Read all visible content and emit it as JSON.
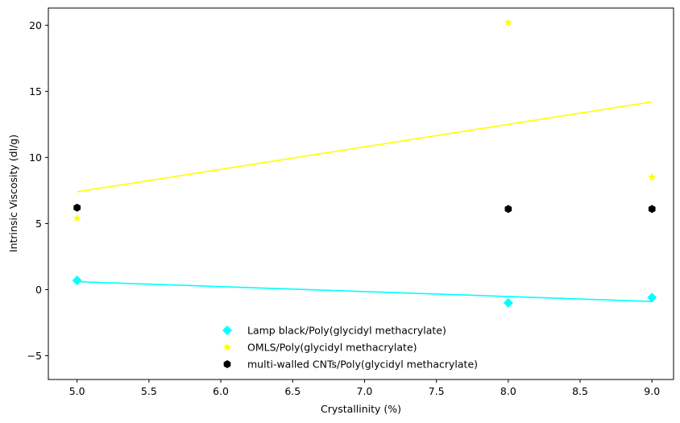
{
  "chart_data": {
    "type": "scatter",
    "xlabel": "Crystallinity (%)",
    "ylabel": "Intrinsic Viscosity (dl/g)",
    "xlim": [
      4.8,
      9.15
    ],
    "ylim": [
      -6.8,
      21.3
    ],
    "x_ticks": [
      5.0,
      5.5,
      6.0,
      6.5,
      7.0,
      7.5,
      8.0,
      8.5,
      9.0
    ],
    "x_tick_labels": [
      "5.0",
      "5.5",
      "6.0",
      "6.5",
      "7.0",
      "7.5",
      "8.0",
      "8.5",
      "9.0"
    ],
    "y_ticks": [
      -5,
      0,
      5,
      10,
      15,
      20
    ],
    "y_tick_labels": [
      "−5",
      "0",
      "5",
      "10",
      "15",
      "20"
    ],
    "grid": false,
    "legend_position": "lower-center",
    "series": [
      {
        "name": "Lamp black/Poly(glycidyl methacrylate)",
        "marker": "diamond",
        "color": "#00ffff",
        "points": [
          [
            5.0,
            0.7
          ],
          [
            8.0,
            -1.0
          ],
          [
            9.0,
            -0.6
          ]
        ],
        "trend": [
          [
            5.0,
            0.6
          ],
          [
            9.0,
            -0.9
          ]
        ]
      },
      {
        "name": "OMLS/Poly(glycidyl methacrylate)",
        "marker": "star",
        "color": "#ffff00",
        "points": [
          [
            5.0,
            5.4
          ],
          [
            8.0,
            20.2
          ],
          [
            9.0,
            8.5
          ]
        ],
        "trend": [
          [
            5.0,
            7.4
          ],
          [
            9.0,
            14.2
          ]
        ]
      },
      {
        "name": "multi-walled CNTs/Poly(glycidyl methacrylate)",
        "marker": "hexagon",
        "color": "#000000",
        "points": [
          [
            5.0,
            6.2
          ],
          [
            8.0,
            6.1
          ],
          [
            9.0,
            6.1
          ]
        ],
        "trend": null
      }
    ]
  }
}
